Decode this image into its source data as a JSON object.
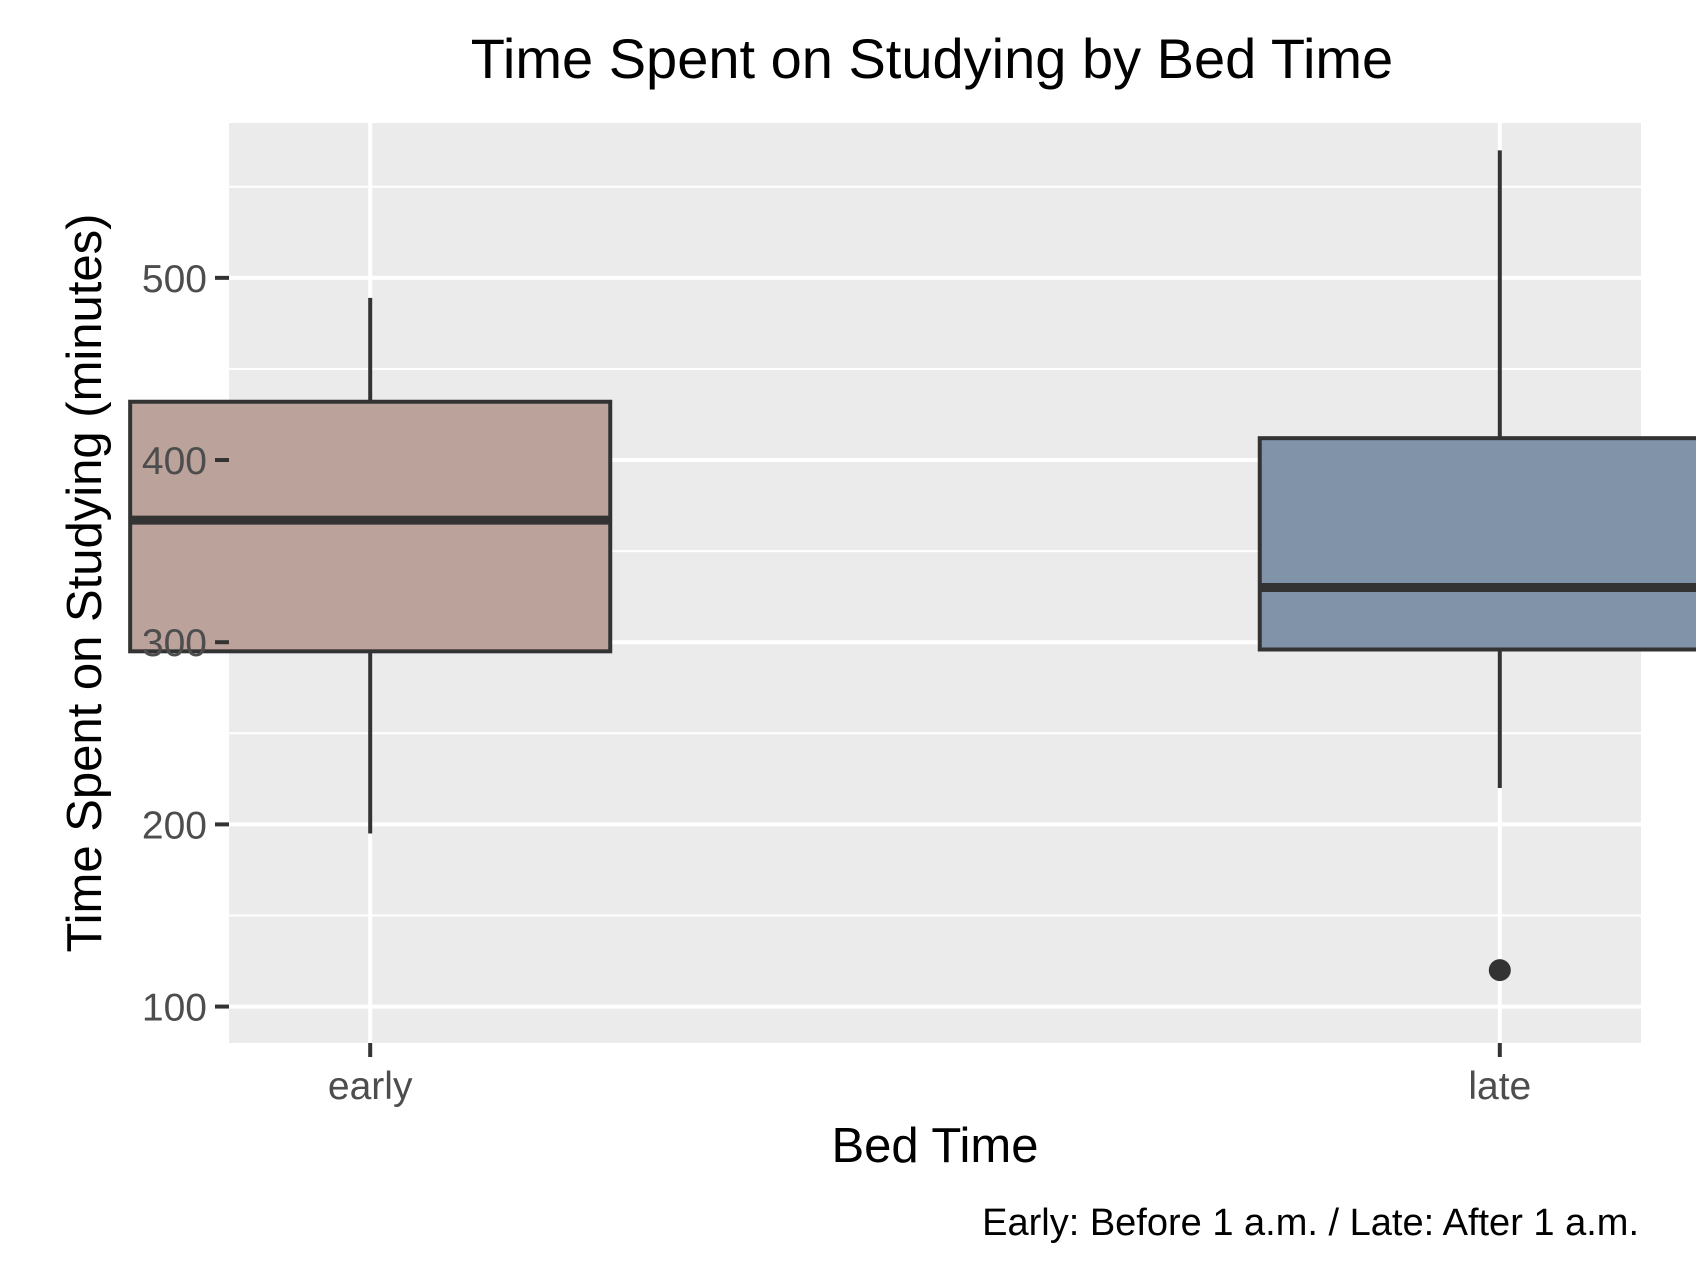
{
  "chart_data": {
    "type": "boxplot",
    "title": "Time Spent on Studying by Bed Time",
    "xlabel": "Bed Time",
    "ylabel": "Time Spent on Studying (minutes)",
    "caption": "Early: Before 1 a.m. / Late: After 1 a.m.",
    "ylim": [
      80,
      585
    ],
    "yticks": [
      100,
      200,
      300,
      400,
      500
    ],
    "ytick_labels": [
      "100",
      "200",
      "300",
      "400",
      "500"
    ],
    "grid": true,
    "legend": "none",
    "categories": [
      "early",
      "late"
    ],
    "boxes": [
      {
        "category": "early",
        "min": 195,
        "q1": 295,
        "median": 367,
        "q3": 432,
        "max": 489,
        "outliers": [],
        "color": "#BBA39C"
      },
      {
        "category": "late",
        "min": 220,
        "q1": 296,
        "median": 330,
        "q3": 412,
        "max": 570,
        "outliers": [
          120
        ],
        "color": "#8093A9"
      }
    ]
  },
  "colors": {
    "panel_background": "#EBEBEB",
    "grid": "#FFFFFF",
    "box_outline": "#333333",
    "tick_mark": "#333333"
  }
}
